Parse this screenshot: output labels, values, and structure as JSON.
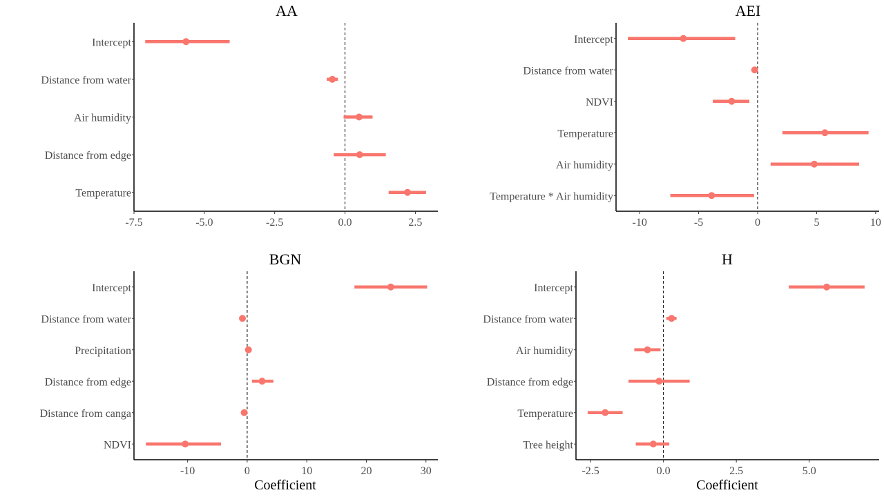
{
  "colors": {
    "accent": "#F8766D",
    "axis": "#000000",
    "text": "#4d4d4d"
  },
  "chart_data": [
    {
      "type": "scatter",
      "title": "AA",
      "xlabel": "",
      "ylabel": "",
      "xlim": [
        -7.5,
        3.3
      ],
      "xticks": [
        -7.5,
        -5.0,
        -2.5,
        0.0,
        2.5
      ],
      "xtick_labels": [
        "-7.5",
        "-5.0",
        "-2.5",
        "0.0",
        "2.5"
      ],
      "reference_line": 0,
      "grid": false,
      "categories": [
        "Intercept",
        "Distance from water",
        "Air humidity",
        "Distance from edge",
        "Temperature"
      ],
      "estimates": [
        -5.65,
        -0.45,
        0.5,
        0.52,
        2.22
      ],
      "lower": [
        -7.1,
        -0.65,
        -0.05,
        -0.4,
        1.55
      ],
      "upper": [
        -4.1,
        -0.25,
        0.98,
        1.45,
        2.88
      ]
    },
    {
      "type": "scatter",
      "title": "AEI",
      "xlabel": "",
      "ylabel": "",
      "xlim": [
        -12,
        10.3
      ],
      "xticks": [
        -10,
        -5,
        0,
        5,
        10
      ],
      "xtick_labels": [
        "-10",
        "-5",
        "0",
        "5",
        "10"
      ],
      "reference_line": 0,
      "grid": false,
      "categories": [
        "Intercept",
        "Distance from water",
        "NDVI",
        "Temperature",
        "Air humidity",
        "Temperature * Air humidity"
      ],
      "estimates": [
        -6.3,
        -0.25,
        -2.2,
        5.7,
        4.8,
        -3.9
      ],
      "lower": [
        -11,
        -0.4,
        -3.8,
        2.1,
        1.1,
        -7.4
      ],
      "upper": [
        -1.9,
        -0.1,
        -0.7,
        9.4,
        8.6,
        -0.3
      ]
    },
    {
      "type": "scatter",
      "title": "BGN",
      "xlabel": "Coefficient",
      "ylabel": "",
      "xlim": [
        -19,
        32
      ],
      "xticks": [
        -10,
        0,
        10,
        20,
        30
      ],
      "xtick_labels": [
        "-10",
        "0",
        "10",
        "20",
        "30"
      ],
      "reference_line": 0,
      "grid": false,
      "categories": [
        "Intercept",
        "Distance from water",
        "Precipitation",
        "Distance from edge",
        "Distance from canga",
        "NDVI"
      ],
      "estimates": [
        24.1,
        -0.8,
        0.2,
        2.5,
        -0.5,
        -10.4
      ],
      "lower": [
        18.0,
        -1.1,
        0.0,
        0.8,
        -0.7,
        -17.0
      ],
      "upper": [
        30.2,
        -0.5,
        0.4,
        4.4,
        -0.3,
        -4.4
      ]
    },
    {
      "type": "scatter",
      "title": "H",
      "xlabel": "Coefficient",
      "ylabel": "",
      "xlim": [
        -3.0,
        7.4
      ],
      "xticks": [
        -2.5,
        0.0,
        2.5,
        5.0
      ],
      "xtick_labels": [
        "-2.5",
        "0.0",
        "2.5",
        "5.0"
      ],
      "reference_line": 0,
      "grid": false,
      "categories": [
        "Intercept",
        "Distance from water",
        "Air humidity",
        "Distance from edge",
        "Temperature",
        "Tree height"
      ],
      "estimates": [
        5.6,
        0.28,
        -0.55,
        -0.15,
        -2.0,
        -0.35
      ],
      "lower": [
        4.3,
        0.1,
        -1.0,
        -1.2,
        -2.6,
        -0.95
      ],
      "upper": [
        6.9,
        0.45,
        -0.1,
        0.9,
        -1.4,
        0.2
      ]
    }
  ]
}
